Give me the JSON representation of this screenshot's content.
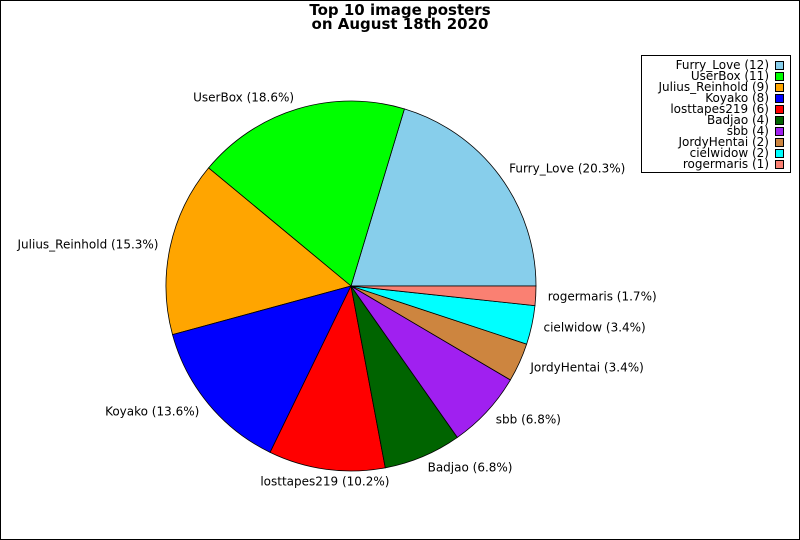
{
  "chart_data": {
    "type": "pie",
    "title": "Top 10 image posters",
    "subtitle": "on August 18th 2020",
    "slices": [
      {
        "name": "Furry_Love",
        "count": 12,
        "percent_label": "20.3%",
        "color": "#87ceeb"
      },
      {
        "name": "UserBox",
        "count": 11,
        "percent_label": "18.6%",
        "color": "#00ff00"
      },
      {
        "name": "Julius_Reinhold",
        "count": 9,
        "percent_label": "15.3%",
        "color": "#ffa500"
      },
      {
        "name": "Koyako",
        "count": 8,
        "percent_label": "13.6%",
        "color": "#0000ff"
      },
      {
        "name": "losttapes219",
        "count": 6,
        "percent_label": "10.2%",
        "color": "#ff0000"
      },
      {
        "name": "Badjao",
        "count": 4,
        "percent_label": "6.8%",
        "color": "#006400"
      },
      {
        "name": "sbb",
        "count": 4,
        "percent_label": "6.8%",
        "color": "#a020f0"
      },
      {
        "name": "JordyHentai",
        "count": 2,
        "percent_label": "3.4%",
        "color": "#cd853f"
      },
      {
        "name": "cielwidow",
        "count": 2,
        "percent_label": "3.4%",
        "color": "#00ffff"
      },
      {
        "name": "rogermaris",
        "count": 1,
        "percent_label": "1.7%",
        "color": "#fa8072"
      }
    ],
    "legend_placement": "top-right"
  }
}
